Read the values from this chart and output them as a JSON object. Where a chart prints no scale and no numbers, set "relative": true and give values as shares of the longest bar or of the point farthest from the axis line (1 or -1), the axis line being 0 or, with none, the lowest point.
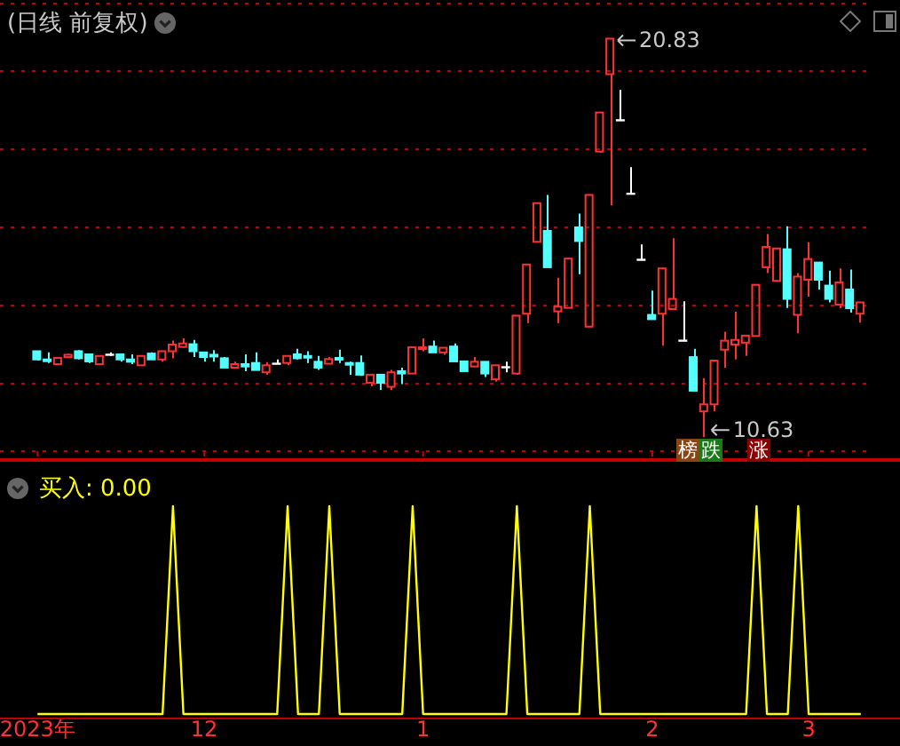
{
  "chart_data": [
    {
      "type": "candlestick",
      "title": "(日线 前复权)",
      "categories": [
        "2023年",
        null,
        null,
        null,
        null,
        null,
        null,
        null,
        null,
        null,
        null,
        null,
        null,
        null,
        null,
        null,
        "12",
        null,
        null,
        null,
        null,
        null,
        null,
        null,
        null,
        null,
        null,
        null,
        null,
        null,
        null,
        null,
        null,
        null,
        null,
        null,
        null,
        "1",
        null,
        null,
        null,
        null,
        null,
        null,
        null,
        null,
        null,
        null,
        null,
        null,
        null,
        null,
        null,
        null,
        null,
        null,
        null,
        null,
        null,
        "2",
        null,
        null,
        null,
        null,
        null,
        null,
        null,
        null,
        null,
        null,
        null,
        null,
        null,
        null,
        "3",
        null,
        null,
        null,
        null,
        null
      ],
      "ohlc": [
        [
          12.83,
          12.83,
          12.59,
          12.62
        ],
        [
          12.62,
          12.8,
          12.53,
          12.59
        ],
        [
          12.5,
          12.66,
          12.5,
          12.66
        ],
        [
          12.68,
          12.77,
          12.66,
          12.74
        ],
        [
          12.83,
          12.86,
          12.62,
          12.65
        ],
        [
          12.75,
          12.75,
          12.53,
          12.57
        ],
        [
          12.5,
          12.71,
          12.5,
          12.71
        ],
        [
          12.74,
          12.8,
          12.71,
          12.74
        ],
        [
          12.75,
          12.75,
          12.56,
          12.62
        ],
        [
          12.62,
          12.75,
          12.5,
          12.56
        ],
        [
          12.47,
          12.71,
          12.47,
          12.71
        ],
        [
          12.77,
          12.8,
          12.62,
          12.62
        ],
        [
          12.62,
          12.83,
          12.56,
          12.83
        ],
        [
          12.83,
          13.1,
          12.65,
          13.0
        ],
        [
          12.94,
          13.16,
          12.92,
          13.03
        ],
        [
          13.01,
          13.12,
          12.68,
          12.83
        ],
        [
          12.8,
          12.8,
          12.56,
          12.68
        ],
        [
          12.74,
          12.86,
          12.56,
          12.71
        ],
        [
          12.65,
          12.68,
          12.41,
          12.41
        ],
        [
          12.41,
          12.56,
          12.41,
          12.5
        ],
        [
          12.5,
          12.75,
          12.32,
          12.44
        ],
        [
          12.53,
          12.8,
          12.35,
          12.35
        ],
        [
          12.29,
          12.55,
          12.23,
          12.47
        ],
        [
          12.51,
          12.62,
          12.51,
          12.51
        ],
        [
          12.53,
          12.71,
          12.47,
          12.71
        ],
        [
          12.75,
          12.89,
          12.62,
          12.65
        ],
        [
          12.71,
          12.83,
          12.53,
          12.68
        ],
        [
          12.56,
          12.71,
          12.35,
          12.41
        ],
        [
          12.51,
          12.68,
          12.5,
          12.63
        ],
        [
          12.66,
          12.87,
          12.53,
          12.62
        ],
        [
          12.53,
          12.56,
          12.23,
          12.5
        ],
        [
          12.53,
          12.72,
          12.2,
          12.23
        ],
        [
          12.02,
          12.23,
          11.93,
          12.23
        ],
        [
          12.23,
          12.23,
          11.84,
          12.02
        ],
        [
          11.92,
          12.35,
          11.84,
          12.29
        ],
        [
          12.32,
          12.41,
          11.99,
          12.26
        ],
        [
          12.26,
          12.93,
          12.26,
          12.93
        ],
        [
          12.89,
          13.16,
          12.83,
          12.93
        ],
        [
          12.95,
          13.1,
          12.8,
          12.8
        ],
        [
          12.8,
          12.92,
          12.74,
          12.92
        ],
        [
          12.95,
          13.03,
          12.57,
          12.57
        ],
        [
          12.57,
          12.57,
          12.32,
          12.32
        ],
        [
          12.44,
          12.68,
          12.44,
          12.56
        ],
        [
          12.56,
          12.56,
          12.17,
          12.26
        ],
        [
          12.11,
          12.47,
          12.05,
          12.47
        ],
        [
          12.42,
          12.56,
          12.29,
          12.42
        ],
        [
          12.26,
          13.74,
          12.23,
          13.74
        ],
        [
          13.79,
          15.05,
          13.55,
          15.05
        ],
        [
          15.63,
          16.62,
          15.63,
          16.62
        ],
        [
          15.91,
          16.83,
          14.98,
          14.98
        ],
        [
          13.85,
          14.71,
          13.55,
          13.97
        ],
        [
          13.94,
          15.2,
          13.94,
          15.2
        ],
        [
          16.0,
          16.35,
          14.8,
          15.65
        ],
        [
          13.46,
          16.83,
          13.46,
          16.83
        ],
        [
          17.94,
          18.94,
          17.91,
          18.94
        ],
        [
          19.92,
          20.83,
          16.56,
          20.83
        ],
        [
          18.74,
          19.52,
          18.74,
          18.74
        ],
        [
          16.86,
          17.54,
          16.86,
          16.86
        ],
        [
          15.17,
          15.56,
          15.17,
          15.17
        ],
        [
          13.76,
          14.38,
          13.65,
          13.65
        ],
        [
          13.79,
          14.95,
          12.97,
          14.95
        ],
        [
          13.91,
          15.72,
          13.91,
          14.17
        ],
        [
          13.1,
          14.11,
          13.1,
          13.1
        ],
        [
          12.68,
          12.89,
          11.82,
          11.82
        ],
        [
          11.29,
          12.14,
          10.63,
          11.47
        ],
        [
          11.47,
          12.59,
          11.29,
          12.59
        ],
        [
          12.87,
          13.33,
          12.41,
          13.1
        ],
        [
          13.0,
          13.84,
          12.62,
          13.12
        ],
        [
          13.05,
          13.23,
          12.71,
          13.23
        ],
        [
          13.22,
          14.53,
          13.22,
          14.53
        ],
        [
          14.98,
          15.83,
          14.83,
          15.5
        ],
        [
          14.63,
          15.46,
          14.63,
          15.46
        ],
        [
          15.44,
          16.03,
          13.94,
          14.17
        ],
        [
          13.76,
          14.83,
          13.29,
          14.74
        ],
        [
          14.66,
          15.62,
          14.23,
          15.19
        ],
        [
          15.1,
          15.1,
          14.41,
          14.66
        ],
        [
          14.51,
          14.89,
          14.08,
          14.17
        ],
        [
          14.02,
          14.95,
          13.93,
          14.59
        ],
        [
          14.41,
          14.92,
          13.82,
          13.93
        ],
        [
          13.79,
          14.08,
          13.56,
          14.08
        ]
      ],
      "colors": [
        "#54ffff",
        "#54ffff",
        "#ff3232",
        "#ff3232",
        "#54ffff",
        "#54ffff",
        "#ff3232",
        "#ffffff",
        "#54ffff",
        "#54ffff",
        "#ff3232",
        "#54ffff",
        "#ff3232",
        "#ff3232",
        "#ff3232",
        "#54ffff",
        "#54ffff",
        "#54ffff",
        "#54ffff",
        "#ff3232",
        "#54ffff",
        "#54ffff",
        "#ff3232",
        "#ffffff",
        "#ff3232",
        "#54ffff",
        "#54ffff",
        "#54ffff",
        "#ff3232",
        "#54ffff",
        "#54ffff",
        "#54ffff",
        "#ff3232",
        "#54ffff",
        "#ff3232",
        "#54ffff",
        "#ff3232",
        "#ff3232",
        "#54ffff",
        "#ff3232",
        "#54ffff",
        "#54ffff",
        "#ff3232",
        "#54ffff",
        "#ff3232",
        "#ffffff",
        "#ff3232",
        "#ff3232",
        "#ff3232",
        "#54ffff",
        "#ff3232",
        "#ff3232",
        "#54ffff",
        "#ff3232",
        "#ff3232",
        "#ff3232",
        "#ffffff",
        "#ffffff",
        "#ffffff",
        "#54ffff",
        "#ff3232",
        "#ff3232",
        "#ffffff",
        "#54ffff",
        "#ff3232",
        "#ff3232",
        "#ff3232",
        "#ff3232",
        "#ff3232",
        "#ff3232",
        "#ff3232",
        "#ff3232",
        "#54ffff",
        "#ff3232",
        "#ff3232",
        "#54ffff",
        "#54ffff",
        "#ff3232",
        "#54ffff",
        "#ff3232"
      ],
      "yticks": [
        {
          "value": 12,
          "label": null
        },
        {
          "value": 14,
          "label": null
        },
        {
          "value": 16,
          "label": null
        },
        {
          "value": 18,
          "label": null
        },
        {
          "value": 20,
          "label": null
        }
      ],
      "grid": "y",
      "tick_labels": "x",
      "annotations": [
        "20.83",
        "10.63",
        "榜",
        "跌",
        "涨"
      ]
    },
    {
      "type": "line",
      "title": "买入: 0.00",
      "relative": true,
      "color": "#ffff00",
      "categories": [
        null,
        null,
        null,
        null,
        null,
        null,
        null,
        null,
        null,
        null,
        null,
        null,
        null,
        null,
        null,
        null,
        null,
        null,
        null,
        null,
        null,
        null,
        null,
        null,
        null,
        null,
        null,
        null,
        null,
        null,
        null,
        null,
        null,
        null,
        null,
        null,
        null,
        null,
        null,
        null,
        null,
        null,
        null,
        null,
        null,
        null,
        null,
        null,
        null,
        null,
        null,
        null,
        null,
        null,
        null,
        null,
        null,
        null,
        null,
        null,
        null,
        null,
        null,
        null,
        null,
        null,
        null,
        null,
        null,
        null,
        null,
        null,
        null,
        null,
        null,
        null,
        null,
        null,
        null,
        null
      ],
      "values": [
        0,
        0,
        0,
        0,
        0,
        0,
        0,
        0,
        0,
        0,
        0,
        0,
        0,
        1,
        0,
        0,
        0,
        0,
        0,
        0,
        0,
        0,
        0,
        0,
        1,
        0,
        0,
        0,
        1,
        0,
        0,
        0,
        0,
        0,
        0,
        0,
        1,
        0,
        0,
        0,
        0,
        0,
        0,
        0,
        0,
        0,
        1,
        0,
        0,
        0,
        0,
        0,
        0,
        1,
        0,
        0,
        0,
        0,
        0,
        0,
        0,
        0,
        0,
        0,
        0,
        0,
        0,
        0,
        0,
        1,
        0,
        0,
        0,
        1,
        0,
        0,
        0,
        0,
        0,
        0
      ],
      "tick_labels": false
    }
  ]
}
